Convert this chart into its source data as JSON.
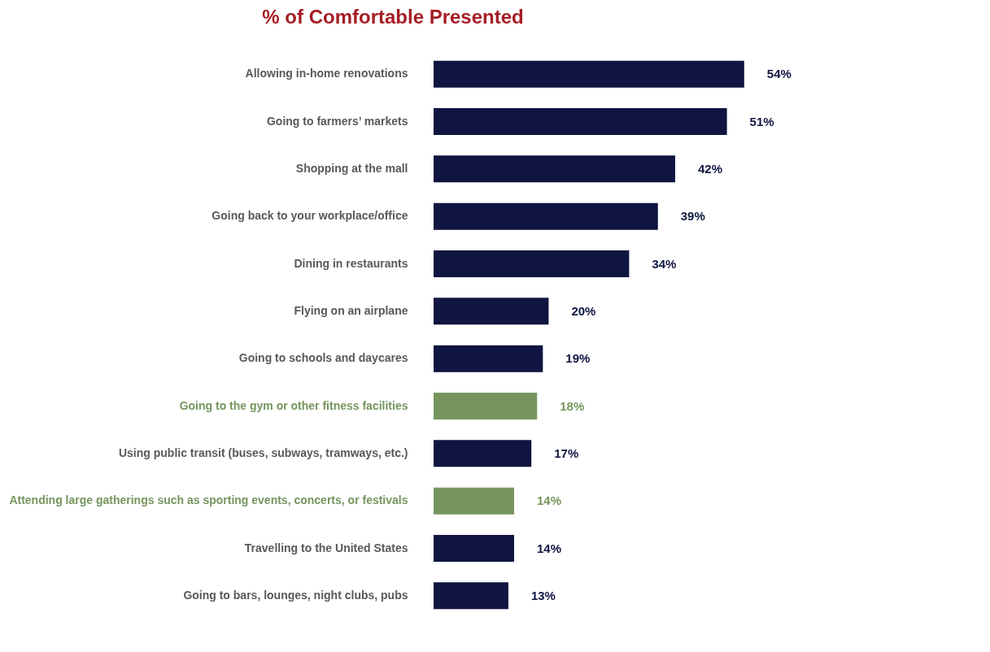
{
  "chart_data": {
    "type": "bar",
    "orientation": "horizontal",
    "title": "% of Comfortable Presented",
    "categories": [
      "Allowing in-home renovations",
      "Going to farmers’ markets",
      "Shopping at the mall",
      "Going back to your workplace/office",
      "Dining in restaurants",
      "Flying on an airplane",
      "Going to schools and daycares",
      "Going to the gym or other fitness facilities",
      "Using public transit (buses, subways, tramways, etc.)",
      "Attending large gatherings such as sporting events, concerts, or festivals",
      "Travelling to the United States",
      "Going to bars, lounges, night clubs, pubs"
    ],
    "values": [
      54,
      51,
      42,
      39,
      34,
      20,
      19,
      18,
      17,
      14,
      14,
      13
    ],
    "value_labels": [
      "54%",
      "51%",
      "42%",
      "39%",
      "34%",
      "20%",
      "19%",
      "18%",
      "17%",
      "14%",
      "14%",
      "13%"
    ],
    "colors": [
      "#0f1540",
      "#0f1540",
      "#0f1540",
      "#0f1540",
      "#0f1540",
      "#0f1540",
      "#0f1540",
      "#76955e",
      "#0f1540",
      "#76955e",
      "#0f1540",
      "#0f1540"
    ],
    "tick_labels": "y"
  }
}
